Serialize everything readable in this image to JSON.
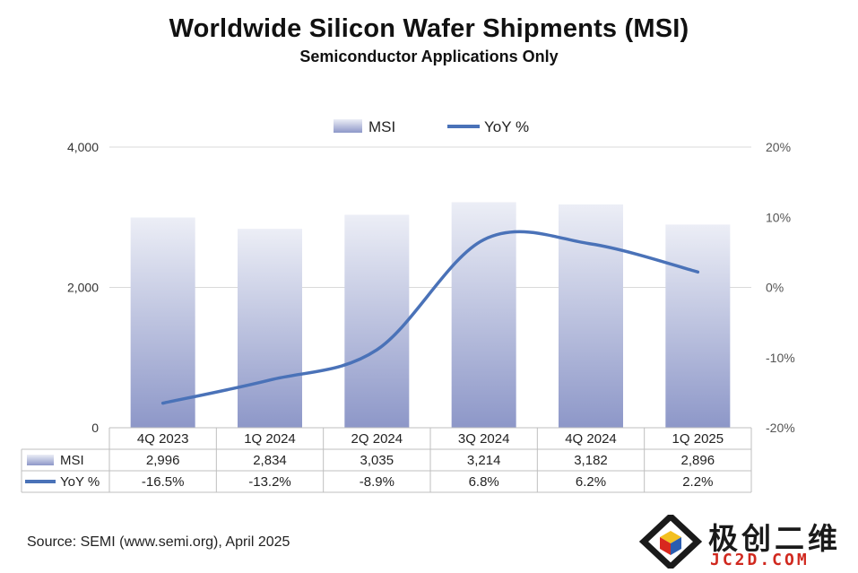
{
  "chart_data": {
    "type": "bar",
    "title": "Worldwide Silicon Wafer Shipments (MSI)",
    "subtitle": "Semiconductor Applications Only",
    "categories": [
      "4Q 2023",
      "1Q 2024",
      "2Q 2024",
      "3Q 2024",
      "4Q 2024",
      "1Q 2025"
    ],
    "series": [
      {
        "name": "MSI",
        "type": "bar",
        "axis": "left",
        "values": [
          2996,
          2834,
          3035,
          3214,
          3182,
          2896
        ],
        "labels": [
          "2,996",
          "2,834",
          "3,035",
          "3,214",
          "3,182",
          "2,896"
        ]
      },
      {
        "name": "YoY %",
        "type": "line",
        "axis": "right",
        "values": [
          -16.5,
          -13.2,
          -8.9,
          6.8,
          6.2,
          2.2
        ],
        "labels": [
          "-16.5%",
          "-13.2%",
          "-8.9%",
          "6.8%",
          "6.2%",
          "2.2%"
        ]
      }
    ],
    "y_left": {
      "range": [
        0,
        4000
      ],
      "ticks": [
        0,
        2000,
        4000
      ],
      "tick_labels": [
        "0",
        "2,000",
        "4,000"
      ]
    },
    "y_right": {
      "range": [
        -20,
        20
      ],
      "ticks": [
        -20,
        -10,
        0,
        10,
        20
      ],
      "tick_labels": [
        "-20%",
        "-10%",
        "0%",
        "10%",
        "20%"
      ]
    },
    "legend_position": "top-center",
    "grid": true,
    "data_table": true
  },
  "colors": {
    "bar_top": "#eceef6",
    "bar_bottom": "#8d97c8",
    "line": "#4a72b8",
    "grid": "#d9d9d9"
  },
  "footer": {
    "source": "Source: SEMI (www.semi.org), April 2025"
  },
  "watermark": {
    "text": "极创二维",
    "sub": "JC2D.COM"
  }
}
